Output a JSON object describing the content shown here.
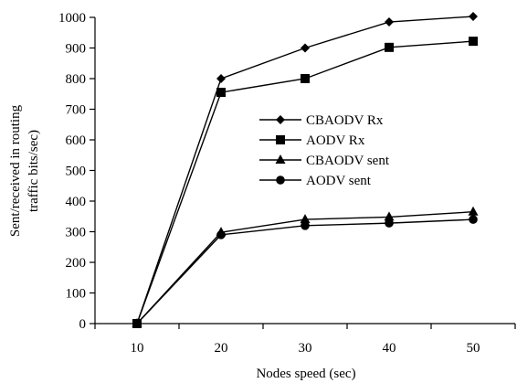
{
  "chart_data": {
    "type": "line",
    "title": "",
    "xlabel": "Nodes speed (sec)",
    "ylabel_lines": [
      "Sent/received in routing",
      "traffic bits/sec)"
    ],
    "x": [
      10,
      20,
      30,
      40,
      50
    ],
    "xlim": [
      5,
      55
    ],
    "ylim": [
      0,
      1000
    ],
    "xticks": [
      10,
      20,
      30,
      40,
      50
    ],
    "yticks": [
      0,
      100,
      200,
      300,
      400,
      500,
      600,
      700,
      800,
      900,
      1000
    ],
    "grid": false,
    "legend_position": "center",
    "series": [
      {
        "name": "CBAODV Rx",
        "marker": "diamond",
        "values": [
          0,
          800,
          900,
          985,
          1003
        ]
      },
      {
        "name": "AODV Rx",
        "marker": "square",
        "values": [
          0,
          755,
          800,
          902,
          922
        ]
      },
      {
        "name": "CBAODV sent",
        "marker": "triangle",
        "values": [
          0,
          298,
          340,
          348,
          365
        ]
      },
      {
        "name": "AODV sent",
        "marker": "circle",
        "values": [
          0,
          290,
          320,
          328,
          340
        ]
      }
    ]
  }
}
